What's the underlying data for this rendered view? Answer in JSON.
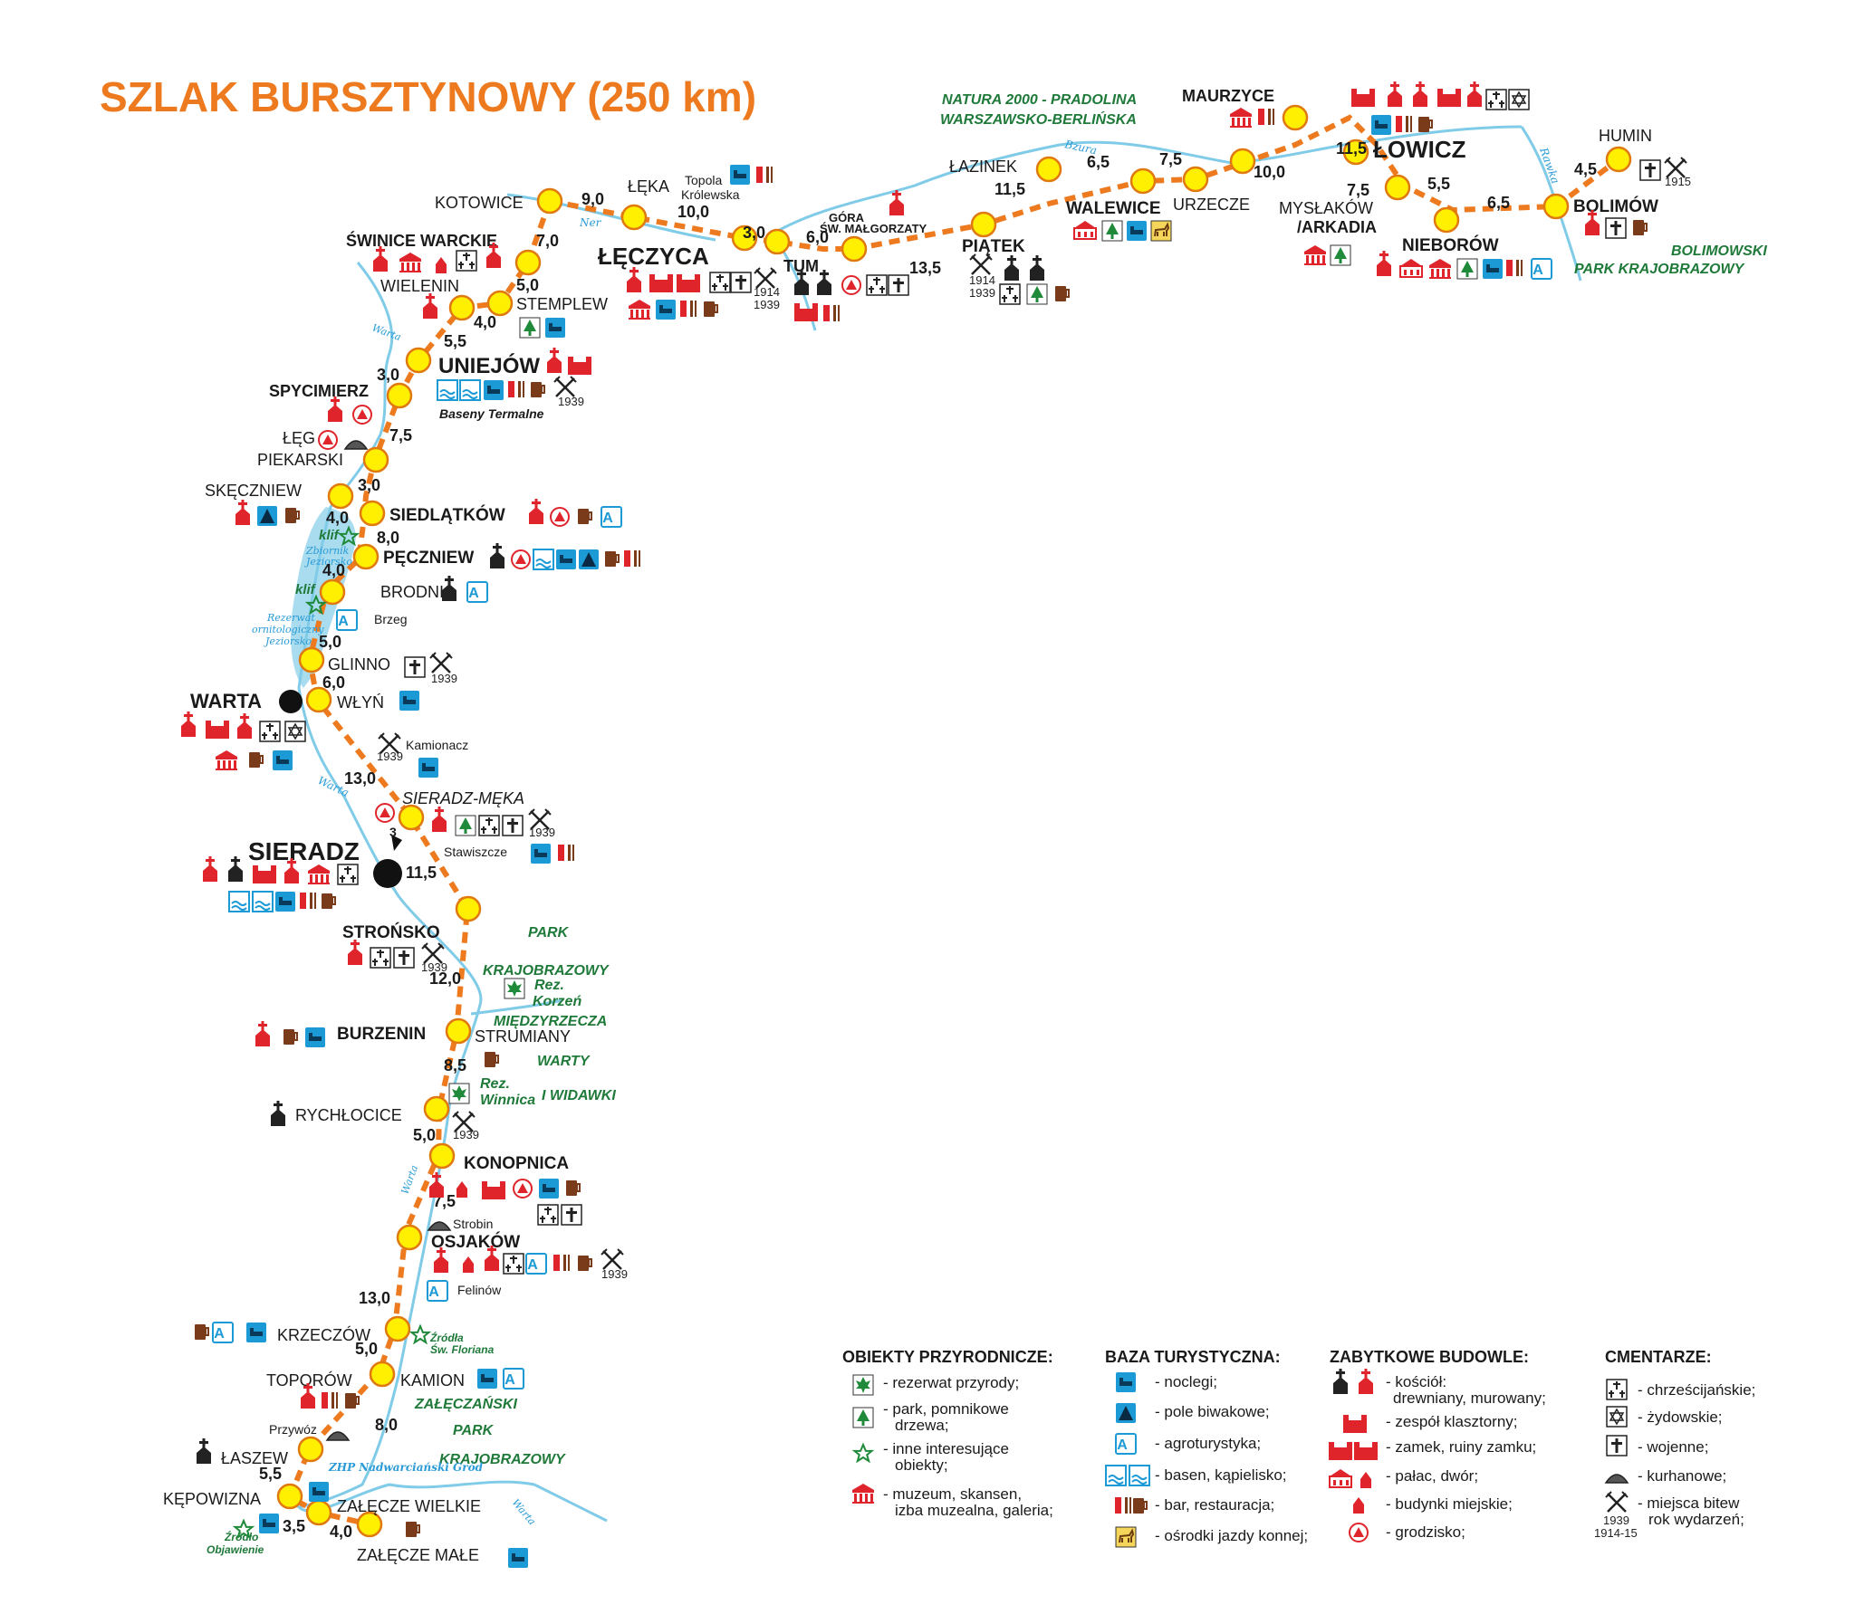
{
  "title": "SZLAK BURSZTYNOWY (250 km)",
  "colors": {
    "title": "#ee7a1f",
    "route": "#ee7a1f",
    "node_fill": "#ffef00",
    "node_stroke": "#e07a10",
    "river": "#7fcbe8",
    "lake": "#a9dcef",
    "icon_red": "#e0242b",
    "icon_blue": "#1c9ad6",
    "green_text": "#1f7a3a"
  },
  "regions": {
    "natura_1": "NATURA 2000 - PRADOLINA",
    "natura_2": "WARSZAWSKO-BERLIŃSKA",
    "bolimowski_1": "BOLIMOWSKI",
    "bolimowski_2": "PARK KRAJOBRAZOWY",
    "park_1": "PARK",
    "park_2": "KRAJOBRAZOWY",
    "park_3": "MIĘDZYRZECZA",
    "park_4": "WARTY",
    "park_5": "I WIDAWKI",
    "zal_1": "ZAŁĘCZAŃSKI",
    "zal_2": "PARK",
    "zal_3": "KRAJOBRAZOWY"
  },
  "rivers": {
    "ner": "Ner",
    "bzura": "Bzura",
    "rawka": "Rawka",
    "warta_1": "Warta",
    "warta_2": "Warta",
    "warta_3": "Warta",
    "warta_4": "Warta"
  },
  "notes": {
    "baseny": "Baseny Termalne",
    "zbiornik_1": "Zbiornik",
    "zbiornik_2": "Jeziorsko",
    "rez_1": "Rezerwat",
    "rez_2": "ornitologiczny",
    "rez_3": "Jeziorsko",
    "klif1": "klif",
    "klif2": "klif",
    "korzen_1": "Rez.",
    "korzen_2": "Korzeń",
    "winnica_1": "Rez.",
    "winnica_2": "Winnica",
    "floriana_1": "Źródła",
    "floriana_2": "Św. Floriana",
    "objawienie_1": "Źródło",
    "objawienie_2": "Objawienie",
    "zhp": "ZHP Nadwarciański Gród",
    "arrow_3": "3"
  },
  "places": {
    "kotowice": "KOTOWICE",
    "leka": "ŁĘKA",
    "topola_1": "Topola",
    "topola_2": "Królewska",
    "swinice": "ŚWINICE WARCKIE",
    "wielenin": "WIELENIN",
    "stemplew": "STEMPLEW",
    "leczyca": "ŁĘCZYCA",
    "tum": "TUM",
    "gora_1": "GÓRA",
    "gora_2": "ŚW. MAŁGORZATY",
    "lazinek": "ŁAZINEK",
    "piatek": "PIĄTEK",
    "walewice": "WALEWICE",
    "urzecze": "URZECZE",
    "maurzyce": "MAURZYCE",
    "lowicz": "ŁOWICZ",
    "myslakow": "MYSŁAKÓW",
    "arkadia": "/ARKADIA",
    "nieborow": "NIEBORÓW",
    "humin": "HUMIN",
    "bolimow": "BOLIMÓW",
    "uniejow": "UNIEJÓW",
    "spycimierz": "SPYCIMIERZ",
    "leg": "ŁĘG",
    "piekarski": "PIEKARSKI",
    "skeczniew": "SKĘCZNIEW",
    "siedlatkow": "SIEDLĄTKÓW",
    "peczniew": "PĘCZNIEW",
    "brodnia": "BRODNIA",
    "brzeg": "Brzeg",
    "glinno": "GLINNO",
    "warta": "WARTA",
    "wlyn": "WŁYŃ",
    "kamionacz": "Kamionacz",
    "sieradz_meka": "SIERADZ-MĘKA",
    "sieradz": "SIERADZ",
    "stawiszcze": "Stawiszcze",
    "stronsko": "STROŃSKO",
    "burzenin": "BURZENIN",
    "strumiany": "STRUMIANY",
    "rychlocice": "RYCHŁOCICE",
    "konopnica": "KONOPNICA",
    "strobin": "Strobin",
    "osjakow": "OSJAKÓW",
    "felinow": "Felinów",
    "krzeczow": "KRZECZÓW",
    "toporow": "TOPORÓW",
    "kamion": "KAMION",
    "przywoz": "Przywóz",
    "laszew": "ŁASZEW",
    "kepowizna": "KĘPOWIZNA",
    "zalecze_wielkie": "ZAŁĘCZE WIELKIE",
    "zalecze_male": "ZAŁĘCZE MAŁE"
  },
  "distances": {
    "d1": "9,0",
    "d2": "10,0",
    "d3": "7,0",
    "d4": "5,0",
    "d5": "4,0",
    "d6": "5,5",
    "d7": "3,0",
    "d8": "3,0",
    "d9": "6,0",
    "d10": "13,5",
    "d11": "11,5",
    "d12": "6,5",
    "d13": "7,5",
    "d14": "10,0",
    "d15": "11,5",
    "d16": "7,5",
    "d17": "5,5",
    "d18": "6,5",
    "d19": "4,5",
    "d20": "7,5",
    "d21": "3,0",
    "d22": "4,0",
    "d23": "8,0",
    "d24": "4,0",
    "d25": "5,0",
    "d26": "6,0",
    "d27": "13,0",
    "d28": "11,5",
    "d29": "12,0",
    "d30": "8,5",
    "d31": "5,0",
    "d32": "7,5",
    "d33": "13,0",
    "d34": "5,0",
    "d35": "8,0",
    "d36": "5,5",
    "d37": "3,5",
    "d38": "4,0"
  },
  "years": {
    "y1939a": "1939",
    "y1939b": "1939",
    "y1914": "1914",
    "y1939c": "1939",
    "y1914b": "1914",
    "y1939d": "1939",
    "y1915": "1915",
    "y1939e": "1939",
    "y1939f": "1939",
    "y1939g": "1939",
    "y1939h": "1939",
    "y1939i": "1939",
    "y1939j": "1939",
    "y1939k": "1939"
  },
  "legend": {
    "sec1": "OBIEKTY PRZYRODNICZE:",
    "sec1_items": [
      "- rezerwat przyrody;",
      "- park, pomnikowe",
      "drzewa;",
      "- inne interesujące",
      "obiekty;",
      "- muzeum, skansen,",
      "izba muzealna, galeria;"
    ],
    "sec2": "BAZA TURYSTYCZNA:",
    "sec2_items": [
      "- noclegi;",
      "- pole biwakowe;",
      "- agroturystyka;",
      "- basen, kąpielisko;",
      "- bar, restauracja;",
      "- ośrodki jazdy konnej;"
    ],
    "sec3": "ZABYTKOWE  BUDOWLE:",
    "sec3_items": [
      "- kościół:",
      "drewniany, murowany;",
      "- zespół klasztorny;",
      "- zamek, ruiny zamku;",
      "- pałac, dwór;",
      "- budynki miejskie;",
      "- grodzisko;"
    ],
    "sec4": "CMENTARZE:",
    "sec4_items": [
      "- chrześcijańskie;",
      "- żydowskie;",
      "- wojenne;",
      "- kurhanowe;",
      "- miejsca bitew",
      "rok wydarzeń;"
    ],
    "sec4_years": [
      "1939",
      "1914-15"
    ]
  }
}
